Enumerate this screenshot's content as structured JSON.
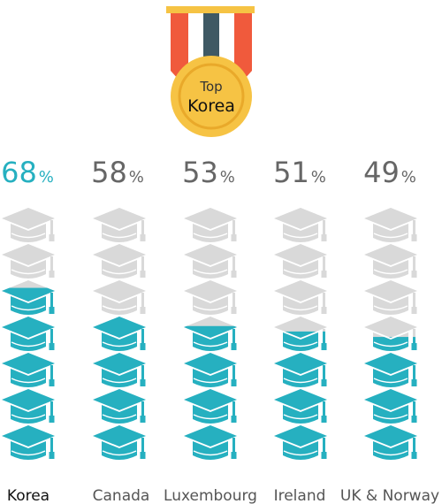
{
  "medal": {
    "top_label": "Top",
    "winner": "Korea"
  },
  "chart_data": {
    "type": "pictograph",
    "categories": [
      "Korea",
      "Canada",
      "Luxembourg",
      "Ireland",
      "UK & Norway"
    ],
    "values": [
      68,
      58,
      53,
      51,
      49
    ],
    "percent_labels": [
      "68",
      "58",
      "53",
      "51",
      "49"
    ],
    "unit": "%",
    "icons_per_column": 7,
    "highlight_category": "Korea",
    "xlabel": "",
    "ylabel": "",
    "ylim": [
      0,
      100
    ]
  },
  "colors": {
    "fill": "#26b0c0",
    "empty": "#d9d9d9",
    "highlight_pct": "#26b0c0",
    "pct": "#666666",
    "label": "#555555",
    "label_highlight": "#111111",
    "medal_gold": "#f6c344",
    "medal_ring": "#e9a92a",
    "ribbon_red": "#f05a3c",
    "ribbon_dark": "#3f5964",
    "ribbon_bar": "#f6c344"
  }
}
